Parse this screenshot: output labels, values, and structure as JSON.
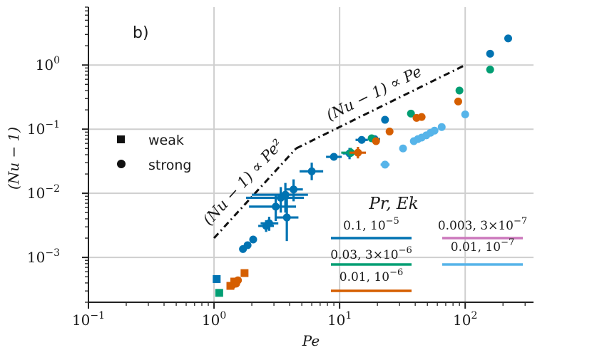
{
  "chart_data": {
    "type": "scatter",
    "panel_label": "b)",
    "xlabel": "Pe",
    "ylabel": "(Nu − 1)",
    "xscale": "log",
    "yscale": "log",
    "xlim": [
      0.1,
      350
    ],
    "ylim": [
      0.0002,
      8
    ],
    "x_ticks": [
      {
        "value": 0.1,
        "base": "10",
        "exp": "-1"
      },
      {
        "value": 1,
        "base": "10",
        "exp": "0"
      },
      {
        "value": 10,
        "base": "10",
        "exp": "1"
      },
      {
        "value": 100,
        "base": "10",
        "exp": "2"
      }
    ],
    "y_ticks": [
      {
        "value": 0.001,
        "base": "10",
        "exp": "-3"
      },
      {
        "value": 0.01,
        "base": "10",
        "exp": "-2"
      },
      {
        "value": 0.1,
        "base": "10",
        "exp": "-1"
      },
      {
        "value": 1,
        "base": "10",
        "exp": "0"
      }
    ],
    "grid": true,
    "marker_legend": [
      {
        "label": "weak",
        "marker": "square"
      },
      {
        "label": "strong",
        "marker": "circle"
      }
    ],
    "series_legend_title": "Pr, Ek",
    "series": [
      {
        "name": "0.1, 10^-5",
        "color": "#0173b2",
        "points": [
          {
            "x": 1.05,
            "y": 0.00046,
            "m": "square"
          },
          {
            "x": 1.7,
            "y": 0.00135,
            "m": "circle"
          },
          {
            "x": 1.85,
            "y": 0.00155,
            "m": "circle"
          },
          {
            "x": 2.05,
            "y": 0.0019,
            "m": "circle"
          },
          {
            "x": 2.6,
            "y": 0.0031,
            "m": "circle",
            "xerr": [
              0.35,
              0.4
            ],
            "yerr": [
              0.0006,
              0.0007
            ]
          },
          {
            "x": 2.75,
            "y": 0.0034,
            "m": "circle",
            "xerr": [
              0.4,
              0.5
            ],
            "yerr": [
              0.0008,
              0.0009
            ]
          },
          {
            "x": 3.1,
            "y": 0.0062,
            "m": "circle",
            "xerr": [
              1.2,
              1.4
            ],
            "yerr": [
              0.0025,
              0.003
            ]
          },
          {
            "x": 3.4,
            "y": 0.0085,
            "m": "circle",
            "xerr": [
              1.6,
              1.8
            ],
            "yerr": [
              0.0035,
              0.004
            ]
          },
          {
            "x": 3.7,
            "y": 0.0095,
            "m": "circle",
            "xerr": [
              1.7,
              1.9
            ],
            "yerr": [
              0.0045,
              0.005
            ]
          },
          {
            "x": 3.8,
            "y": 0.0042,
            "m": "circle",
            "xerr": [
              0.7,
              0.9
            ],
            "yerr": [
              0.0024,
              0.0045
            ]
          },
          {
            "x": 4.3,
            "y": 0.0115,
            "m": "circle",
            "xerr": [
              0.6,
              0.8
            ],
            "yerr": [
              0.004,
              0.005
            ]
          },
          {
            "x": 6.0,
            "y": 0.022,
            "m": "circle",
            "xerr": [
              1.2,
              1.4
            ],
            "yerr": [
              0.006,
              0.008
            ]
          },
          {
            "x": 9.0,
            "y": 0.037,
            "m": "circle",
            "xerr": [
              1.2,
              1.4
            ],
            "yerr": [
              0.004,
              0.005
            ]
          },
          {
            "x": 12.0,
            "y": 0.042,
            "m": "circle",
            "xerr": [
              1.4,
              1.6
            ],
            "yerr": [
              0.008,
              0.009
            ]
          },
          {
            "x": 15.0,
            "y": 0.068,
            "m": "circle",
            "xerr": [
              1.6,
              1.8
            ]
          },
          {
            "x": 19.0,
            "y": 0.07,
            "m": "circle",
            "xerr": [
              1.8,
              2.0
            ]
          },
          {
            "x": 23.0,
            "y": 0.14,
            "m": "circle"
          },
          {
            "x": 158.0,
            "y": 1.5,
            "m": "circle"
          },
          {
            "x": 220.0,
            "y": 2.6,
            "m": "circle"
          }
        ]
      },
      {
        "name": "0.03, 3×10^-6",
        "color": "#029e73",
        "points": [
          {
            "x": 1.1,
            "y": 0.00028,
            "m": "square"
          },
          {
            "x": 12.3,
            "y": 0.043,
            "m": "circle",
            "xerr": [
              2.0,
              2.2
            ],
            "yerr": [
              0.006,
              0.008
            ]
          },
          {
            "x": 18.0,
            "y": 0.072,
            "m": "circle"
          },
          {
            "x": 37.0,
            "y": 0.175,
            "m": "circle"
          },
          {
            "x": 90.0,
            "y": 0.4,
            "m": "circle"
          },
          {
            "x": 158.0,
            "y": 0.85,
            "m": "circle"
          }
        ]
      },
      {
        "name": "0.01, 10^-6",
        "color": "#d55e00",
        "points": [
          {
            "x": 1.35,
            "y": 0.00036,
            "m": "square"
          },
          {
            "x": 1.45,
            "y": 0.00042,
            "m": "square"
          },
          {
            "x": 1.75,
            "y": 0.00057,
            "m": "square"
          },
          {
            "x": 1.4,
            "y": 0.00037,
            "m": "circle"
          },
          {
            "x": 1.55,
            "y": 0.00044,
            "m": "circle"
          },
          {
            "x": 1.5,
            "y": 0.00039,
            "m": "circle"
          },
          {
            "x": 14.0,
            "y": 0.043,
            "m": "circle",
            "xerr": [
              2.0,
              2.2
            ],
            "yerr": [
              0.008,
              0.01
            ]
          },
          {
            "x": 19.5,
            "y": 0.065,
            "m": "circle"
          },
          {
            "x": 25.0,
            "y": 0.092,
            "m": "circle"
          },
          {
            "x": 41.0,
            "y": 0.15,
            "m": "circle"
          },
          {
            "x": 45.0,
            "y": 0.155,
            "m": "circle"
          },
          {
            "x": 88.0,
            "y": 0.27,
            "m": "circle"
          }
        ]
      },
      {
        "name": "0.003, 3×10^-7",
        "color": "#cc78bc",
        "points": []
      },
      {
        "name": "0.01, 10^-7",
        "color": "#56b4e9",
        "points": [
          {
            "x": 23.0,
            "y": 0.028,
            "m": "circle",
            "xerr": [
              1.8,
              2.0
            ]
          },
          {
            "x": 32.0,
            "y": 0.05,
            "m": "circle"
          },
          {
            "x": 39.0,
            "y": 0.065,
            "m": "circle"
          },
          {
            "x": 42.0,
            "y": 0.07,
            "m": "circle"
          },
          {
            "x": 45.0,
            "y": 0.074,
            "m": "circle"
          },
          {
            "x": 49.0,
            "y": 0.08,
            "m": "circle"
          },
          {
            "x": 53.0,
            "y": 0.088,
            "m": "circle"
          },
          {
            "x": 57.0,
            "y": 0.095,
            "m": "circle"
          },
          {
            "x": 65.0,
            "y": 0.108,
            "m": "circle"
          },
          {
            "x": 100.0,
            "y": 0.17,
            "m": "circle"
          }
        ]
      }
    ],
    "reference_lines": [
      {
        "label": "(Nu − 1) ∝ Pe²",
        "points": [
          [
            1.0,
            0.002
          ],
          [
            4.5,
            0.05
          ]
        ]
      },
      {
        "label": "(Nu − 1) ∝ Pe",
        "points": [
          [
            4.5,
            0.05
          ],
          [
            100.0,
            1.0
          ]
        ]
      }
    ],
    "series_legend_labels": [
      {
        "series": 0,
        "text": "0.1, 10",
        "exp": "−5"
      },
      {
        "series": 1,
        "text": "0.03, 3×10",
        "exp": "−6"
      },
      {
        "series": 2,
        "text": "0.01, 10",
        "exp": "−6"
      },
      {
        "series": 3,
        "text": "0.003, 3×10",
        "exp": "−7"
      },
      {
        "series": 4,
        "text": "0.01, 10",
        "exp": "−7"
      }
    ]
  }
}
